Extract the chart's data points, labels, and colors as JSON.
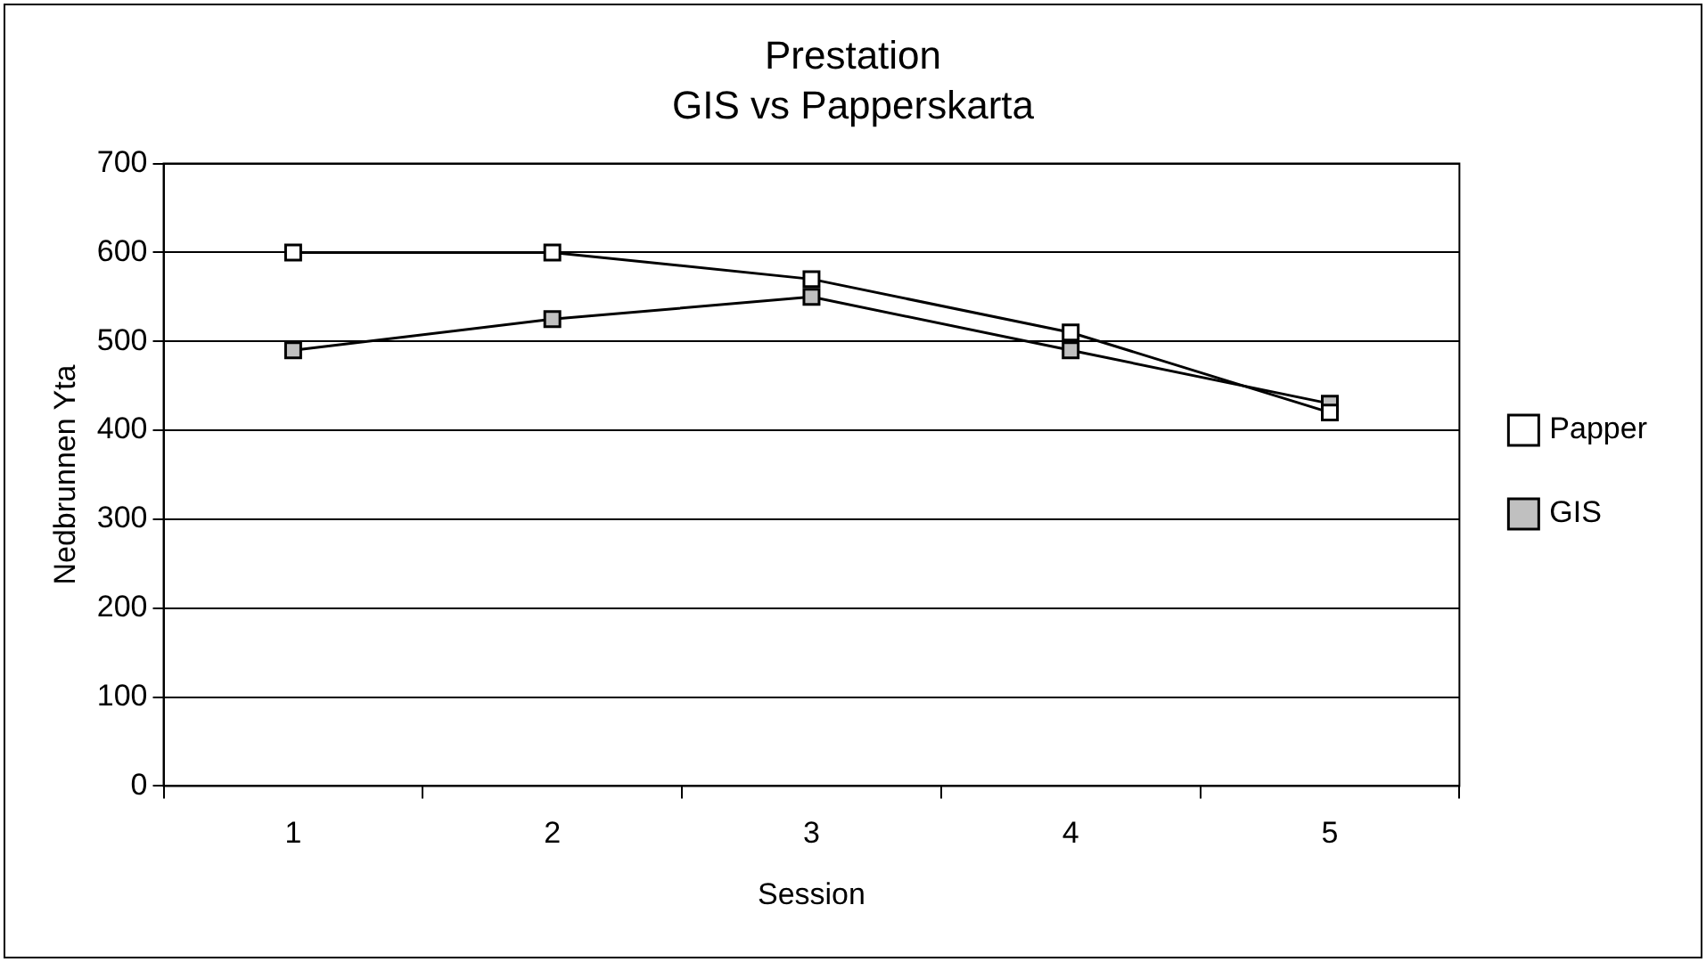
{
  "chart_data": {
    "type": "line",
    "title": "Prestation",
    "subtitle": "GIS vs Papperskarta",
    "xlabel": "Session",
    "ylabel": "Nedbrunnen Yta",
    "categories": [
      "1",
      "2",
      "3",
      "4",
      "5"
    ],
    "series": [
      {
        "name": "GIS",
        "color": "#c0c0c0",
        "values": [
          490,
          525,
          550,
          490,
          430
        ]
      },
      {
        "name": "Papper",
        "color": "#ffffff",
        "values": [
          600,
          600,
          570,
          510,
          420
        ]
      }
    ],
    "ylim": [
      0,
      700
    ],
    "yticks": [
      0,
      100,
      200,
      300,
      400,
      500,
      600,
      700
    ],
    "grid": "y",
    "legend": "right",
    "marker": "square",
    "line_style": "solid"
  }
}
